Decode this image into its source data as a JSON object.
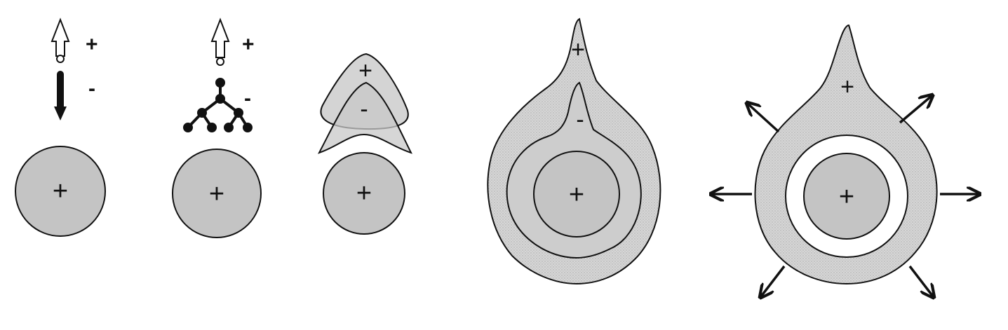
{
  "colors": {
    "background": "#ffffff",
    "circle_fill": "#c4c4c4",
    "zone_fill": "#d2d2d2",
    "stroke": "#111111",
    "gap_fill": "#ffffff"
  },
  "panels": [
    {
      "arrow_plus_label": "+",
      "arrow_minus_label": "-",
      "circle_label": "+"
    },
    {
      "arrow_plus_label": "+",
      "branch_minus_label": "-",
      "circle_label": "+"
    },
    {
      "upper_zone_label": "+",
      "lower_zone_label": "-",
      "circle_label": "+"
    },
    {
      "outer_zone_label": "+",
      "inner_zone_label": "-",
      "circle_label": "+"
    },
    {
      "outer_zone_label": "+",
      "circle_label": "+",
      "outward_arrows": [
        "up-left",
        "up-right",
        "left",
        "right",
        "down-left",
        "down-right"
      ]
    }
  ]
}
